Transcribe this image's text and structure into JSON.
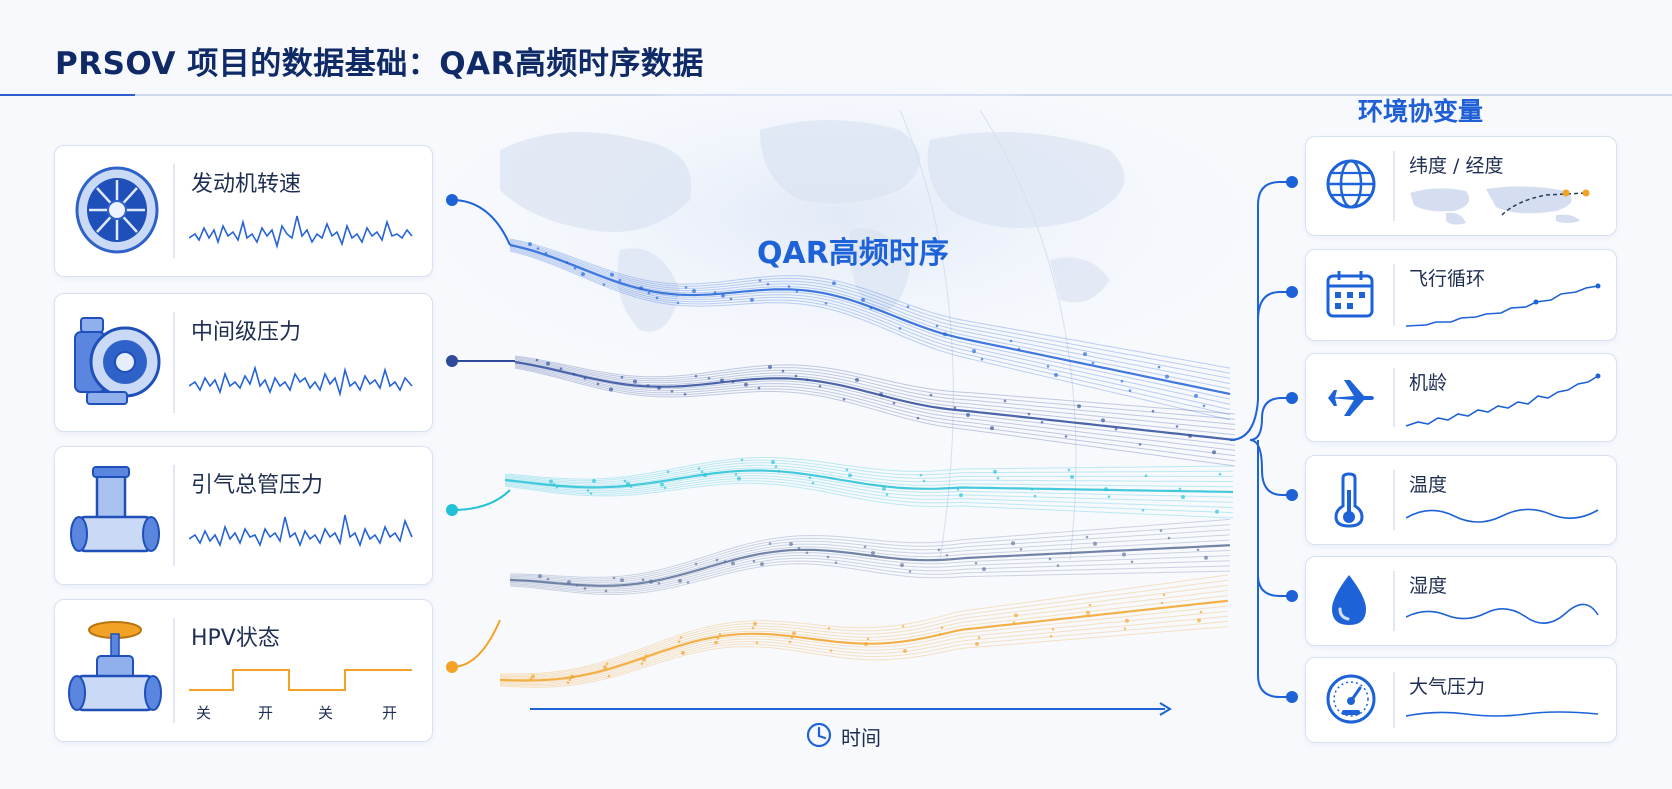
{
  "title": "PRSOV 项目的数据基础：QAR高频时序数据",
  "center_label": "QAR高频时序",
  "env_title": "环境协变量",
  "time_label": "时间",
  "left_sensors": [
    {
      "label": "发动机转速",
      "icon": "engine-fan-icon"
    },
    {
      "label": "中间级压力",
      "icon": "compressor-icon"
    },
    {
      "label": "引气总管压力",
      "icon": "pipe-tee-icon"
    },
    {
      "label": "HPV状态",
      "icon": "valve-icon",
      "states": [
        "关",
        "开",
        "关",
        "开"
      ]
    }
  ],
  "right_covariates": [
    {
      "label": "纬度 / 经度",
      "icon": "globe-icon"
    },
    {
      "label": "飞行循环",
      "icon": "calendar-icon"
    },
    {
      "label": "机龄",
      "icon": "airplane-icon"
    },
    {
      "label": "温度",
      "icon": "thermometer-icon"
    },
    {
      "label": "湿度",
      "icon": "water-drop-icon"
    },
    {
      "label": "大气压力",
      "icon": "gauge-icon"
    }
  ],
  "colors": {
    "blue": "#1e62d8",
    "dark_blue": "#2d4b9a",
    "cyan": "#22c1d6",
    "slate": "#5a6f99",
    "orange": "#f2a326"
  }
}
